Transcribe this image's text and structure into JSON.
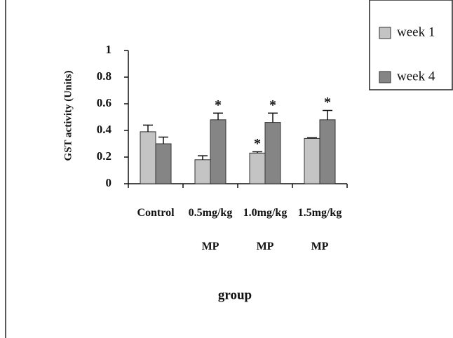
{
  "chart_data": {
    "type": "bar",
    "y_label": "GST activity (Units)",
    "x_label": "group",
    "categories": [
      "Control",
      "0.5mg/kg MP",
      "1.0mg/kg MP",
      "1.5mg/kg MP"
    ],
    "series": [
      {
        "name": "week 1",
        "color": "#c4c4c4",
        "values": [
          0.39,
          0.18,
          0.23,
          0.34
        ],
        "errors": [
          0.05,
          0.03,
          0.01,
          0.005
        ],
        "significance": [
          null,
          null,
          "*",
          null
        ]
      },
      {
        "name": "week 4",
        "color": "#858585",
        "values": [
          0.3,
          0.48,
          0.46,
          0.48
        ],
        "errors": [
          0.05,
          0.05,
          0.07,
          0.07
        ],
        "significance": [
          null,
          "*",
          "*",
          "*"
        ]
      }
    ],
    "ylim": [
      0,
      1
    ],
    "yticks": [
      0,
      0.2,
      0.4,
      0.6,
      0.8,
      1
    ]
  }
}
